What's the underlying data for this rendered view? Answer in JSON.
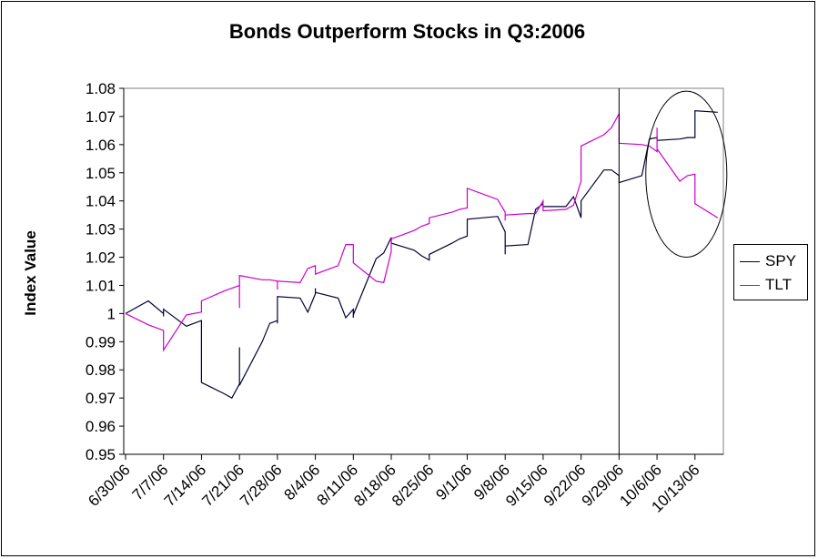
{
  "chart_data": {
    "type": "line",
    "title": "Bonds Outperform Stocks in Q3:2006",
    "ylabel": "Index Value",
    "xlabel": "",
    "ylim": [
      0.95,
      1.08
    ],
    "yticks": [
      "0.95",
      "0.96",
      "0.97",
      "0.98",
      "0.99",
      "1",
      "1.01",
      "1.02",
      "1.03",
      "1.04",
      "1.05",
      "1.06",
      "1.07",
      "1.08"
    ],
    "xticks": [
      "6/30/06",
      "7/7/06",
      "7/14/06",
      "7/21/06",
      "7/28/06",
      "8/4/06",
      "8/11/06",
      "8/18/06",
      "8/25/06",
      "9/1/06",
      "9/8/06",
      "9/15/06",
      "9/22/06",
      "9/29/06",
      "10/6/06",
      "10/13/06"
    ],
    "x": [
      "6/30/06",
      "7/3/06",
      "7/5/06",
      "7/6/06",
      "7/7/06",
      "7/10/06",
      "7/11/06",
      "7/12/06",
      "7/13/06",
      "7/14/06",
      "7/17/06",
      "7/18/06",
      "7/19/06",
      "7/20/06",
      "7/21/06",
      "7/24/06",
      "7/25/06",
      "7/26/06",
      "7/27/06",
      "7/28/06",
      "7/31/06",
      "8/1/06",
      "8/2/06",
      "8/3/06",
      "8/4/06",
      "8/7/06",
      "8/8/06",
      "8/9/06",
      "8/10/06",
      "8/11/06",
      "8/14/06",
      "8/15/06",
      "8/16/06",
      "8/17/06",
      "8/18/06",
      "8/21/06",
      "8/22/06",
      "8/23/06",
      "8/24/06",
      "8/25/06",
      "8/28/06",
      "8/29/06",
      "8/30/06",
      "8/31/06",
      "9/1/06",
      "9/5/06",
      "9/6/06",
      "9/7/06",
      "9/8/06",
      "9/11/06",
      "9/12/06",
      "9/13/06",
      "9/14/06",
      "9/15/06",
      "9/18/06",
      "9/19/06",
      "9/20/06",
      "9/21/06",
      "9/22/06",
      "9/25/06",
      "9/26/06",
      "9/27/06",
      "9/28/06",
      "9/29/06",
      "10/2/06",
      "10/3/06",
      "10/4/06",
      "10/5/06",
      "10/6/06",
      "10/9/06",
      "10/10/06",
      "10/11/06",
      "10/12/06",
      "10/13/06",
      "10/16/06"
    ],
    "series": [
      {
        "name": "SPY",
        "color": "#000033",
        "values": [
          1.0,
          1.0045,
          1.0,
          0.999,
          1.0015,
          0.9955,
          0.9965,
          0.9975,
          0.98,
          0.9755,
          0.9715,
          0.97,
          0.975,
          0.988,
          0.9745,
          0.99,
          0.9965,
          0.9975,
          0.9965,
          1.006,
          1.0055,
          1.0005,
          1.007,
          1.009,
          1.0075,
          1.0055,
          0.9985,
          1.0015,
          0.9985,
          0.9995,
          1.0195,
          1.0215,
          1.027,
          1.0265,
          1.025,
          1.0225,
          1.0205,
          1.019,
          1.02,
          1.021,
          1.025,
          1.0265,
          1.0275,
          1.033,
          1.0335,
          1.0345,
          1.029,
          1.021,
          1.024,
          1.0245,
          1.037,
          1.039,
          1.038,
          1.038,
          1.038,
          1.0415,
          1.034,
          1.0365,
          1.04,
          1.051,
          1.051,
          1.049,
          1.0475,
          1.0465,
          1.049,
          1.062,
          1.0625,
          1.0615,
          1.0615,
          1.062,
          1.0625,
          1.0625,
          1.071,
          1.072,
          1.0715
        ]
      },
      {
        "name": "TLT",
        "color": "#cc00cc",
        "values": [
          1.0,
          0.996,
          0.994,
          0.9905,
          0.987,
          0.9995,
          1.0,
          1.0005,
          1.004,
          1.0045,
          1.008,
          1.009,
          1.01,
          1.002,
          1.0135,
          1.012,
          1.012,
          1.0115,
          1.0085,
          1.0115,
          1.011,
          1.016,
          1.017,
          1.0165,
          1.014,
          1.017,
          1.0245,
          1.0245,
          1.022,
          1.018,
          1.0115,
          1.011,
          1.022,
          1.0265,
          1.0265,
          1.0295,
          1.031,
          1.032,
          1.033,
          1.034,
          1.036,
          1.037,
          1.0375,
          1.041,
          1.0445,
          1.0405,
          1.036,
          1.033,
          1.035,
          1.0355,
          1.0355,
          1.04,
          1.039,
          1.0365,
          1.037,
          1.0385,
          1.047,
          1.048,
          1.0595,
          1.0635,
          1.066,
          1.071,
          1.0635,
          1.0605,
          1.06,
          1.0595,
          1.0575,
          1.066,
          1.0585,
          1.047,
          1.049,
          1.0495,
          1.041,
          1.039,
          1.034
        ]
      }
    ],
    "annotations": [
      {
        "type": "vertical-line",
        "at": "9/29/06"
      },
      {
        "type": "ellipse",
        "x_from": "10/3/06",
        "x_to": "10/16/06",
        "y_from": 1.02,
        "y_to": 1.079
      }
    ],
    "legend": {
      "position": "right",
      "entries": [
        "SPY",
        "TLT"
      ]
    },
    "grid": false
  }
}
